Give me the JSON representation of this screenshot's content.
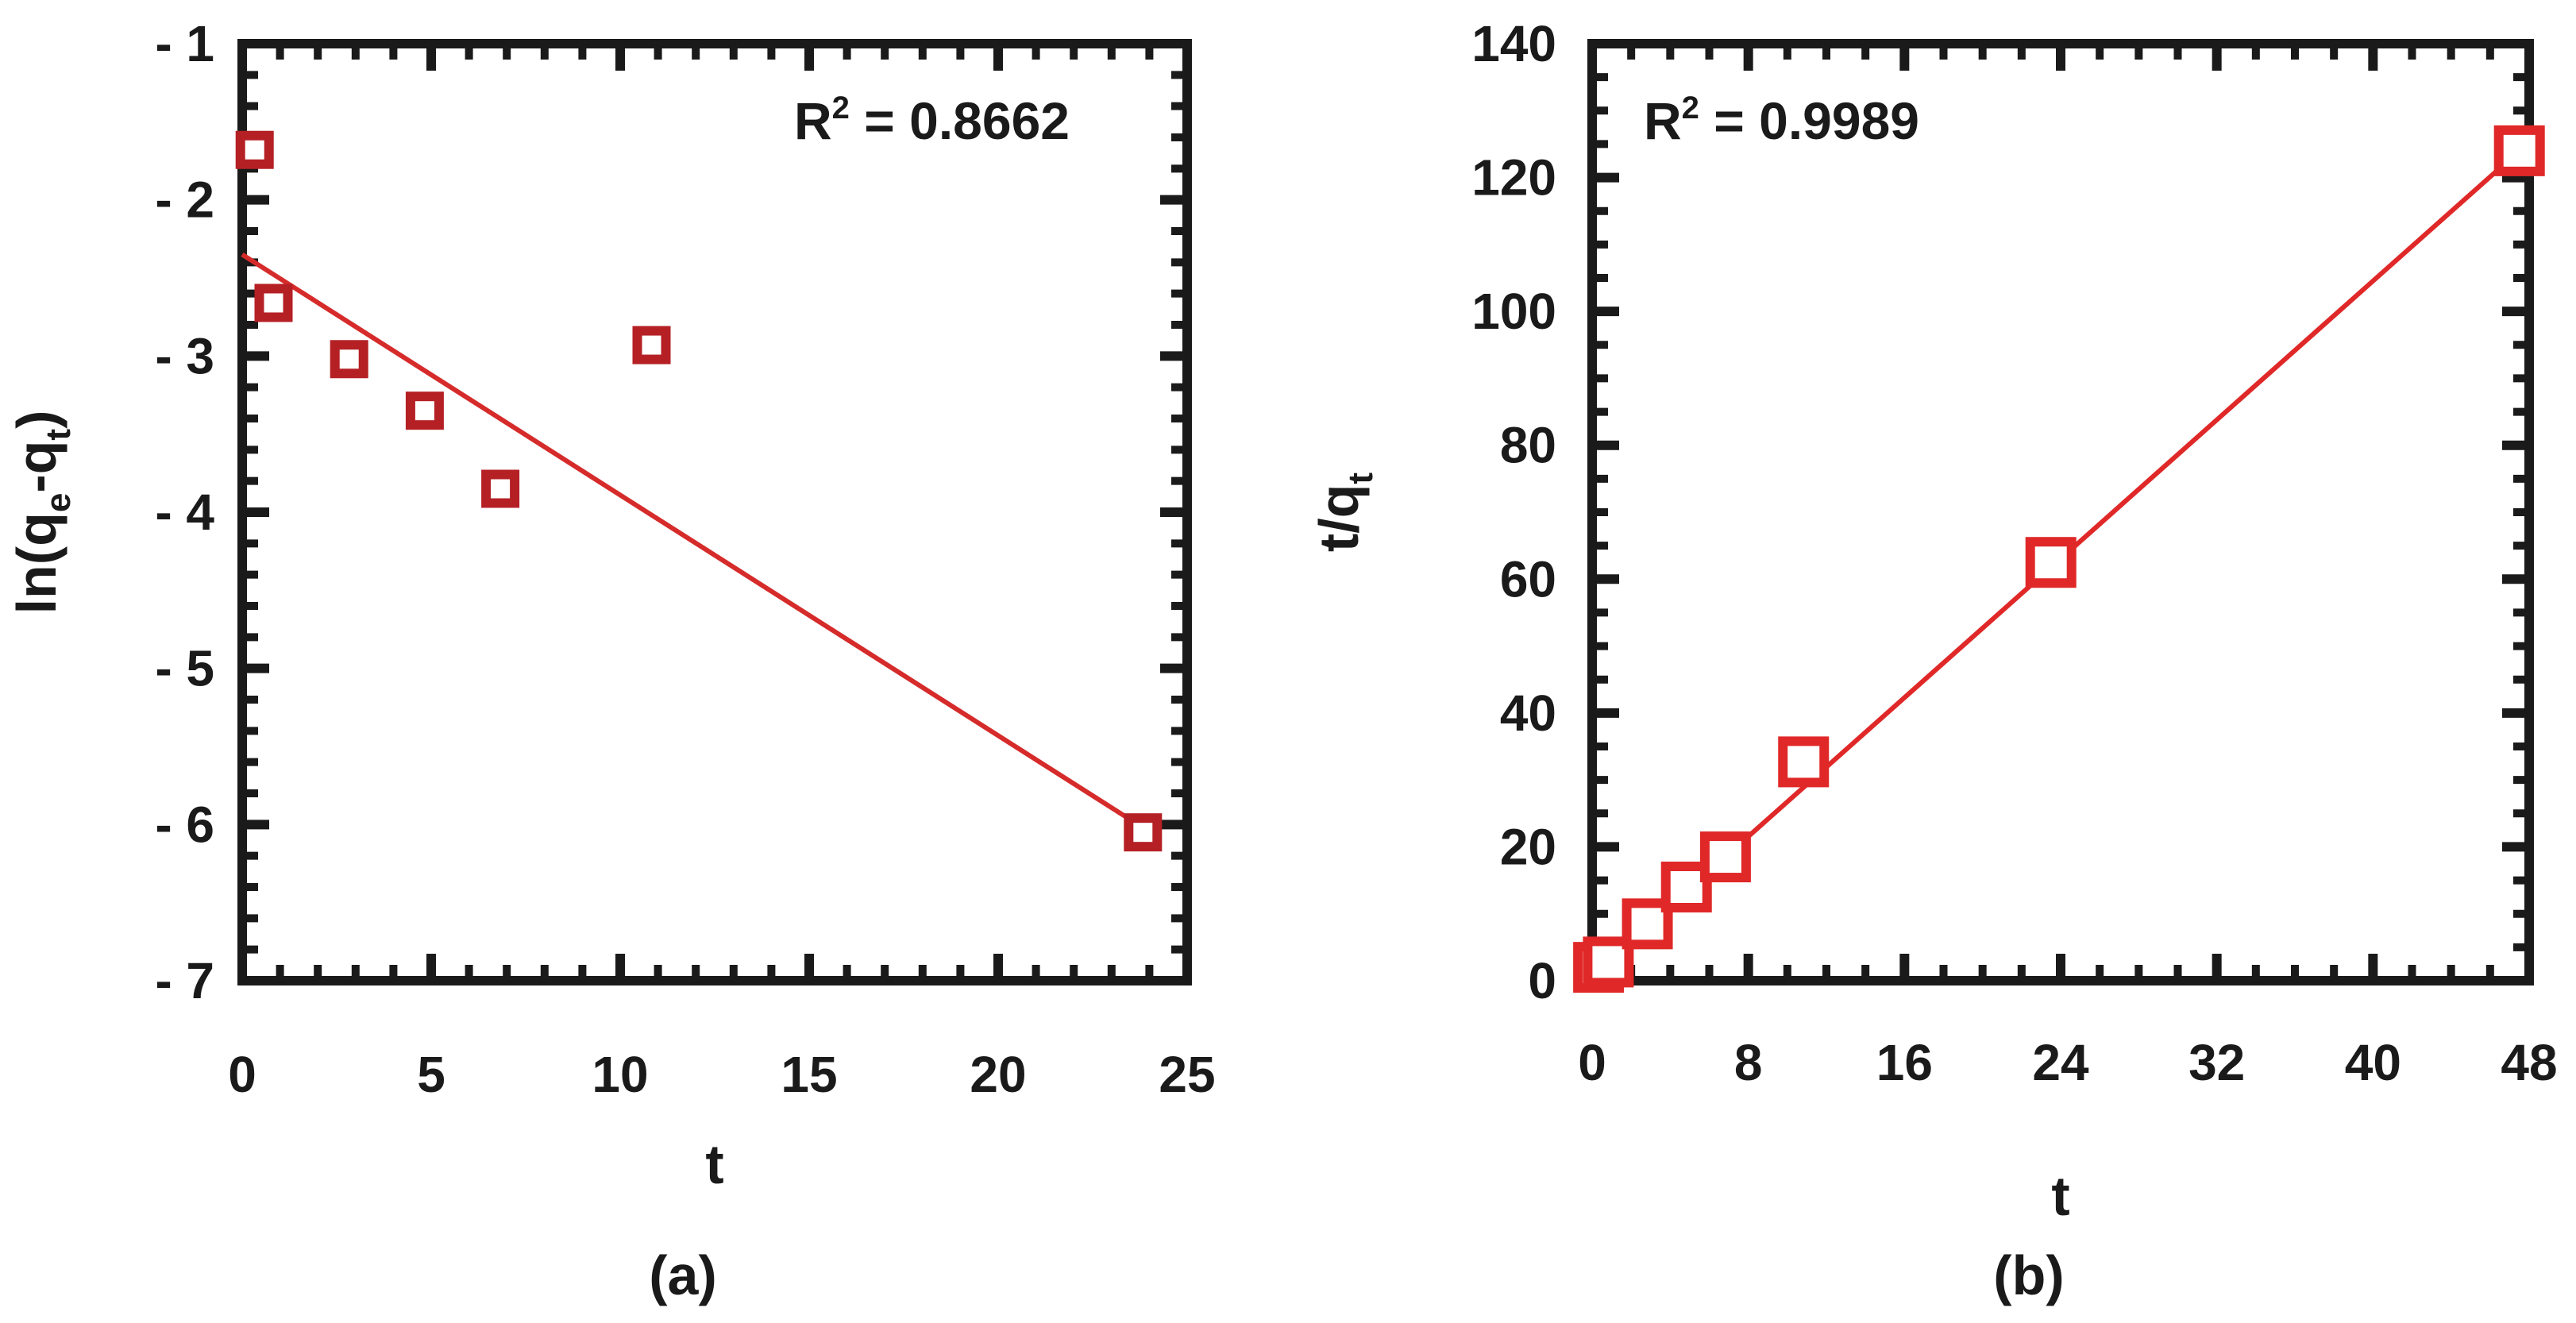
{
  "chart_data": [
    {
      "type": "scatter",
      "panel_label": "(a)",
      "xlabel": "t",
      "ylabel": {
        "base": "ln(q",
        "sub1": "e",
        "mid": "-q",
        "sub2": "t",
        "end": ")"
      },
      "xlim": [
        0,
        25
      ],
      "ylim": [
        -7,
        -1
      ],
      "xticks": [
        0,
        5,
        10,
        15,
        20,
        25
      ],
      "yticks": [
        -1,
        -2,
        -3,
        -4,
        -5,
        -6,
        -7
      ],
      "ytick_labels": [
        "- 1",
        "- 2",
        "- 3",
        "- 4",
        "- 5",
        "- 6",
        "- 7"
      ],
      "annotation": {
        "prefix": "R",
        "sup": "2",
        "suffix": " = 0.8662"
      },
      "marker_color": "#b52025",
      "line_color": "#d62b2b",
      "series": [
        {
          "name": "data",
          "x": [
            0.33,
            0.83,
            2.83,
            4.83,
            6.83,
            10.83,
            23.83
          ],
          "y": [
            -1.68,
            -2.66,
            -3.02,
            -3.35,
            -3.85,
            -2.93,
            -6.05
          ]
        }
      ],
      "fit": {
        "x": [
          0,
          23.83
        ],
        "y": [
          -2.35,
          -6.02
        ]
      }
    },
    {
      "type": "scatter",
      "panel_label": "(b)",
      "xlabel": "t",
      "ylabel": {
        "base": "t/q",
        "sub1": "t"
      },
      "xlim": [
        0,
        48
      ],
      "ylim": [
        0,
        140
      ],
      "xticks": [
        0,
        8,
        16,
        24,
        32,
        40,
        48
      ],
      "yticks": [
        0,
        20,
        40,
        60,
        80,
        100,
        120,
        140
      ],
      "annotation": {
        "prefix": "R",
        "sup": "2",
        "suffix": " = 0.9989"
      },
      "marker_color": "#e02828",
      "line_color": "#e02828",
      "series": [
        {
          "name": "data",
          "x": [
            0.33,
            0.83,
            2.83,
            4.83,
            6.83,
            10.83,
            23.5,
            47.5
          ],
          "y": [
            2.0,
            2.8,
            8.5,
            14.0,
            18.5,
            32.7,
            62.5,
            124.0
          ]
        }
      ],
      "fit": {
        "x": [
          0,
          47.5
        ],
        "y": [
          0.8,
          124.0
        ]
      }
    }
  ]
}
